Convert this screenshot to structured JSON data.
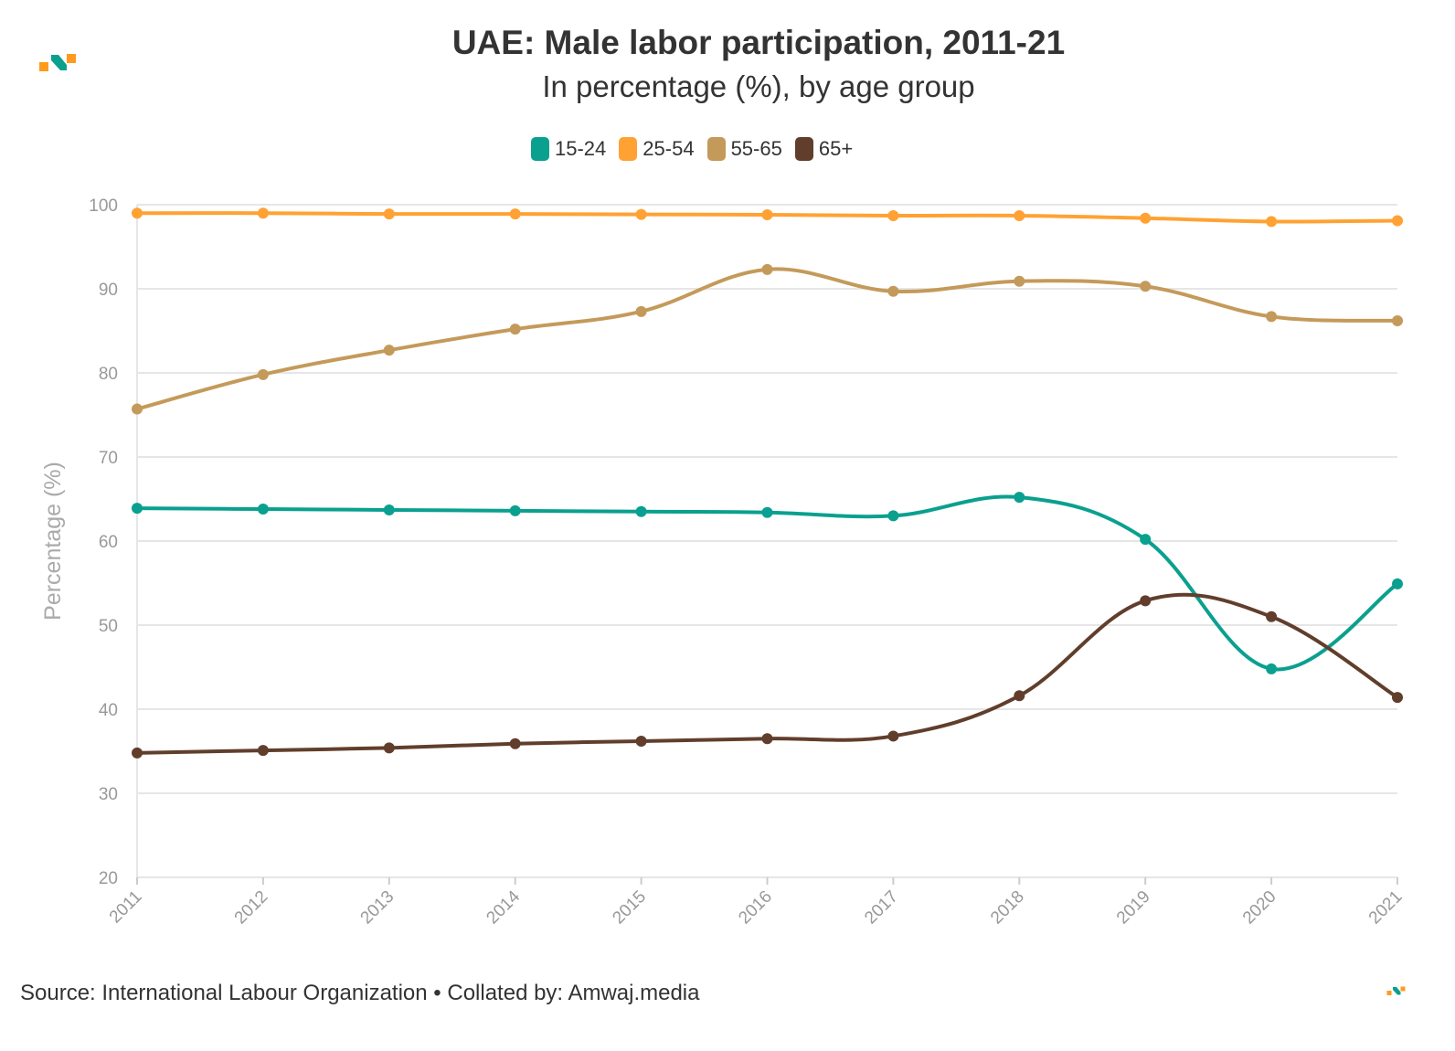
{
  "header": {
    "title": "UAE: Male labor participation, 2011-21",
    "subtitle": "In percentage (%), by age group"
  },
  "footer": {
    "source": "Source: International Labour Organization • Collated by: Amwaj.media"
  },
  "logo": {
    "colors": [
      "#ff9a1f",
      "#0aa08f"
    ]
  },
  "chart_data": {
    "type": "line",
    "title": "UAE: Male labor participation, 2011-21",
    "subtitle": "In percentage (%), by age group",
    "xlabel": "",
    "ylabel": "Percentage (%)",
    "ylim": [
      20,
      100
    ],
    "yticks": [
      "20",
      "30",
      "40",
      "50",
      "60",
      "70",
      "80",
      "90",
      "100"
    ],
    "grid": true,
    "legend_position": "top-center",
    "categories": [
      "2011",
      "2012",
      "2013",
      "2014",
      "2015",
      "2016",
      "2017",
      "2018",
      "2019",
      "2020",
      "2021"
    ],
    "series": [
      {
        "name": "15-24",
        "color": "#0aa08f",
        "values": [
          63.9,
          63.8,
          63.7,
          63.6,
          63.5,
          63.4,
          63.0,
          65.2,
          60.2,
          44.8,
          54.9
        ]
      },
      {
        "name": "25-54",
        "color": "#ffa233",
        "values": [
          99.0,
          99.0,
          98.9,
          98.9,
          98.85,
          98.8,
          98.7,
          98.7,
          98.4,
          98.0,
          98.1
        ]
      },
      {
        "name": "55-65",
        "color": "#c49a5a",
        "values": [
          75.7,
          79.8,
          82.7,
          85.2,
          87.3,
          92.3,
          89.7,
          90.9,
          90.3,
          86.7,
          86.2
        ]
      },
      {
        "name": "65+",
        "color": "#613e2c",
        "values": [
          34.8,
          35.1,
          35.4,
          35.9,
          36.2,
          36.5,
          36.8,
          41.6,
          52.9,
          51.0,
          41.4
        ]
      }
    ]
  }
}
